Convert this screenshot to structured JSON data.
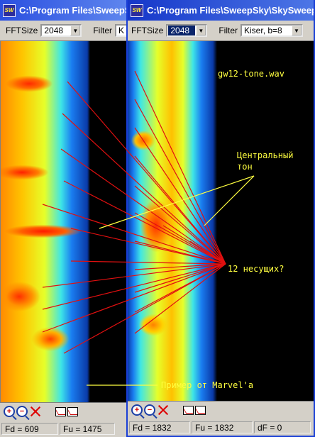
{
  "windows": {
    "left": {
      "title": "C:\\Program Files\\SweepSky",
      "fft_label": "FFTSize",
      "fft_value": "2048",
      "filter_label": "Filter",
      "filter_value": "K",
      "status": {
        "fd": "Fd = 609",
        "fu": "Fu = 1475"
      }
    },
    "right": {
      "title": "C:\\Program Files\\SweepSky\\SkySweeper",
      "fft_label": "FFTSize",
      "fft_value": "2048",
      "filter_label": "Filter",
      "filter_value": "Kiser, b=8",
      "status": {
        "fd": "Fd = 1832",
        "fu": "Fu = 1832",
        "df": "dF = 0"
      }
    }
  },
  "app_icon_text": "SW",
  "annotations": {
    "filename": "gw12-tone.wav",
    "central_line1": "Центральный",
    "central_line2": "тон",
    "carriers": "12 несущих?",
    "example": "Пример от Marvel'a"
  },
  "colors": {
    "annotation_text": "#ffff40",
    "red_lines": "#e01010",
    "yellow_lines": "#ffff40",
    "titlebar_active": "#1537c9"
  },
  "icons": [
    "zoom-in-icon",
    "zoom-out-icon",
    "clear-icon",
    "graph-icon",
    "graph-alt-icon"
  ]
}
